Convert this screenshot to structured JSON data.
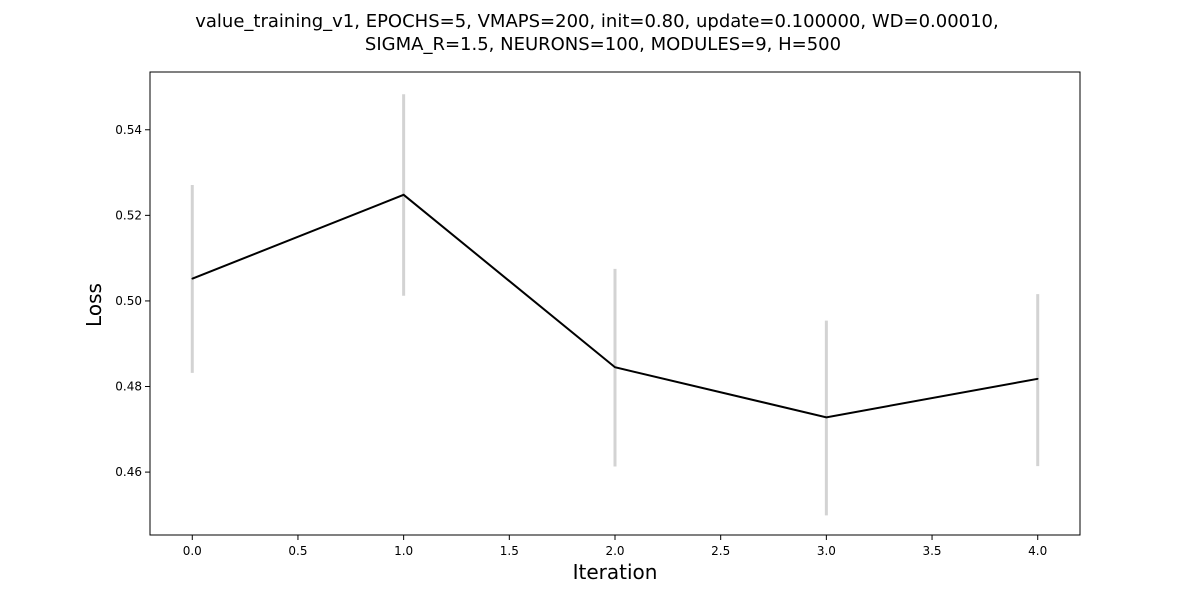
{
  "chart_data": {
    "type": "line",
    "title_lines": [
      "value_training_v1, EPOCHS=5, VMAPS=200, init=0.80, update=0.100000, WD=0.00010,",
      "SIGMA_R=1.5, NEURONS=100, MODULES=9, H=500"
    ],
    "xlabel": "Iteration",
    "ylabel": "Loss",
    "x": [
      0,
      1,
      2,
      3,
      4
    ],
    "y": [
      0.5052,
      0.5248,
      0.4845,
      0.4728,
      0.4818
    ],
    "y_lower": [
      0.4832,
      0.5012,
      0.4613,
      0.4499,
      0.4614
    ],
    "y_upper": [
      0.5271,
      0.5483,
      0.5075,
      0.4954,
      0.5016
    ],
    "xlim": [
      -0.2,
      4.2
    ],
    "ylim": [
      0.4453,
      0.5535
    ],
    "xticks": [
      0.0,
      0.5,
      1.0,
      1.5,
      2.0,
      2.5,
      3.0,
      3.5,
      4.0
    ],
    "xtick_labels": [
      "0.0",
      "0.5",
      "1.0",
      "1.5",
      "2.0",
      "2.5",
      "3.0",
      "3.5",
      "4.0"
    ],
    "yticks": [
      0.46,
      0.48,
      0.5,
      0.52,
      0.54
    ],
    "ytick_labels": [
      "0.46",
      "0.48",
      "0.50",
      "0.52",
      "0.54"
    ],
    "grid": false,
    "line_color": "#000000",
    "errorbar_color": "#d3d3d3"
  }
}
